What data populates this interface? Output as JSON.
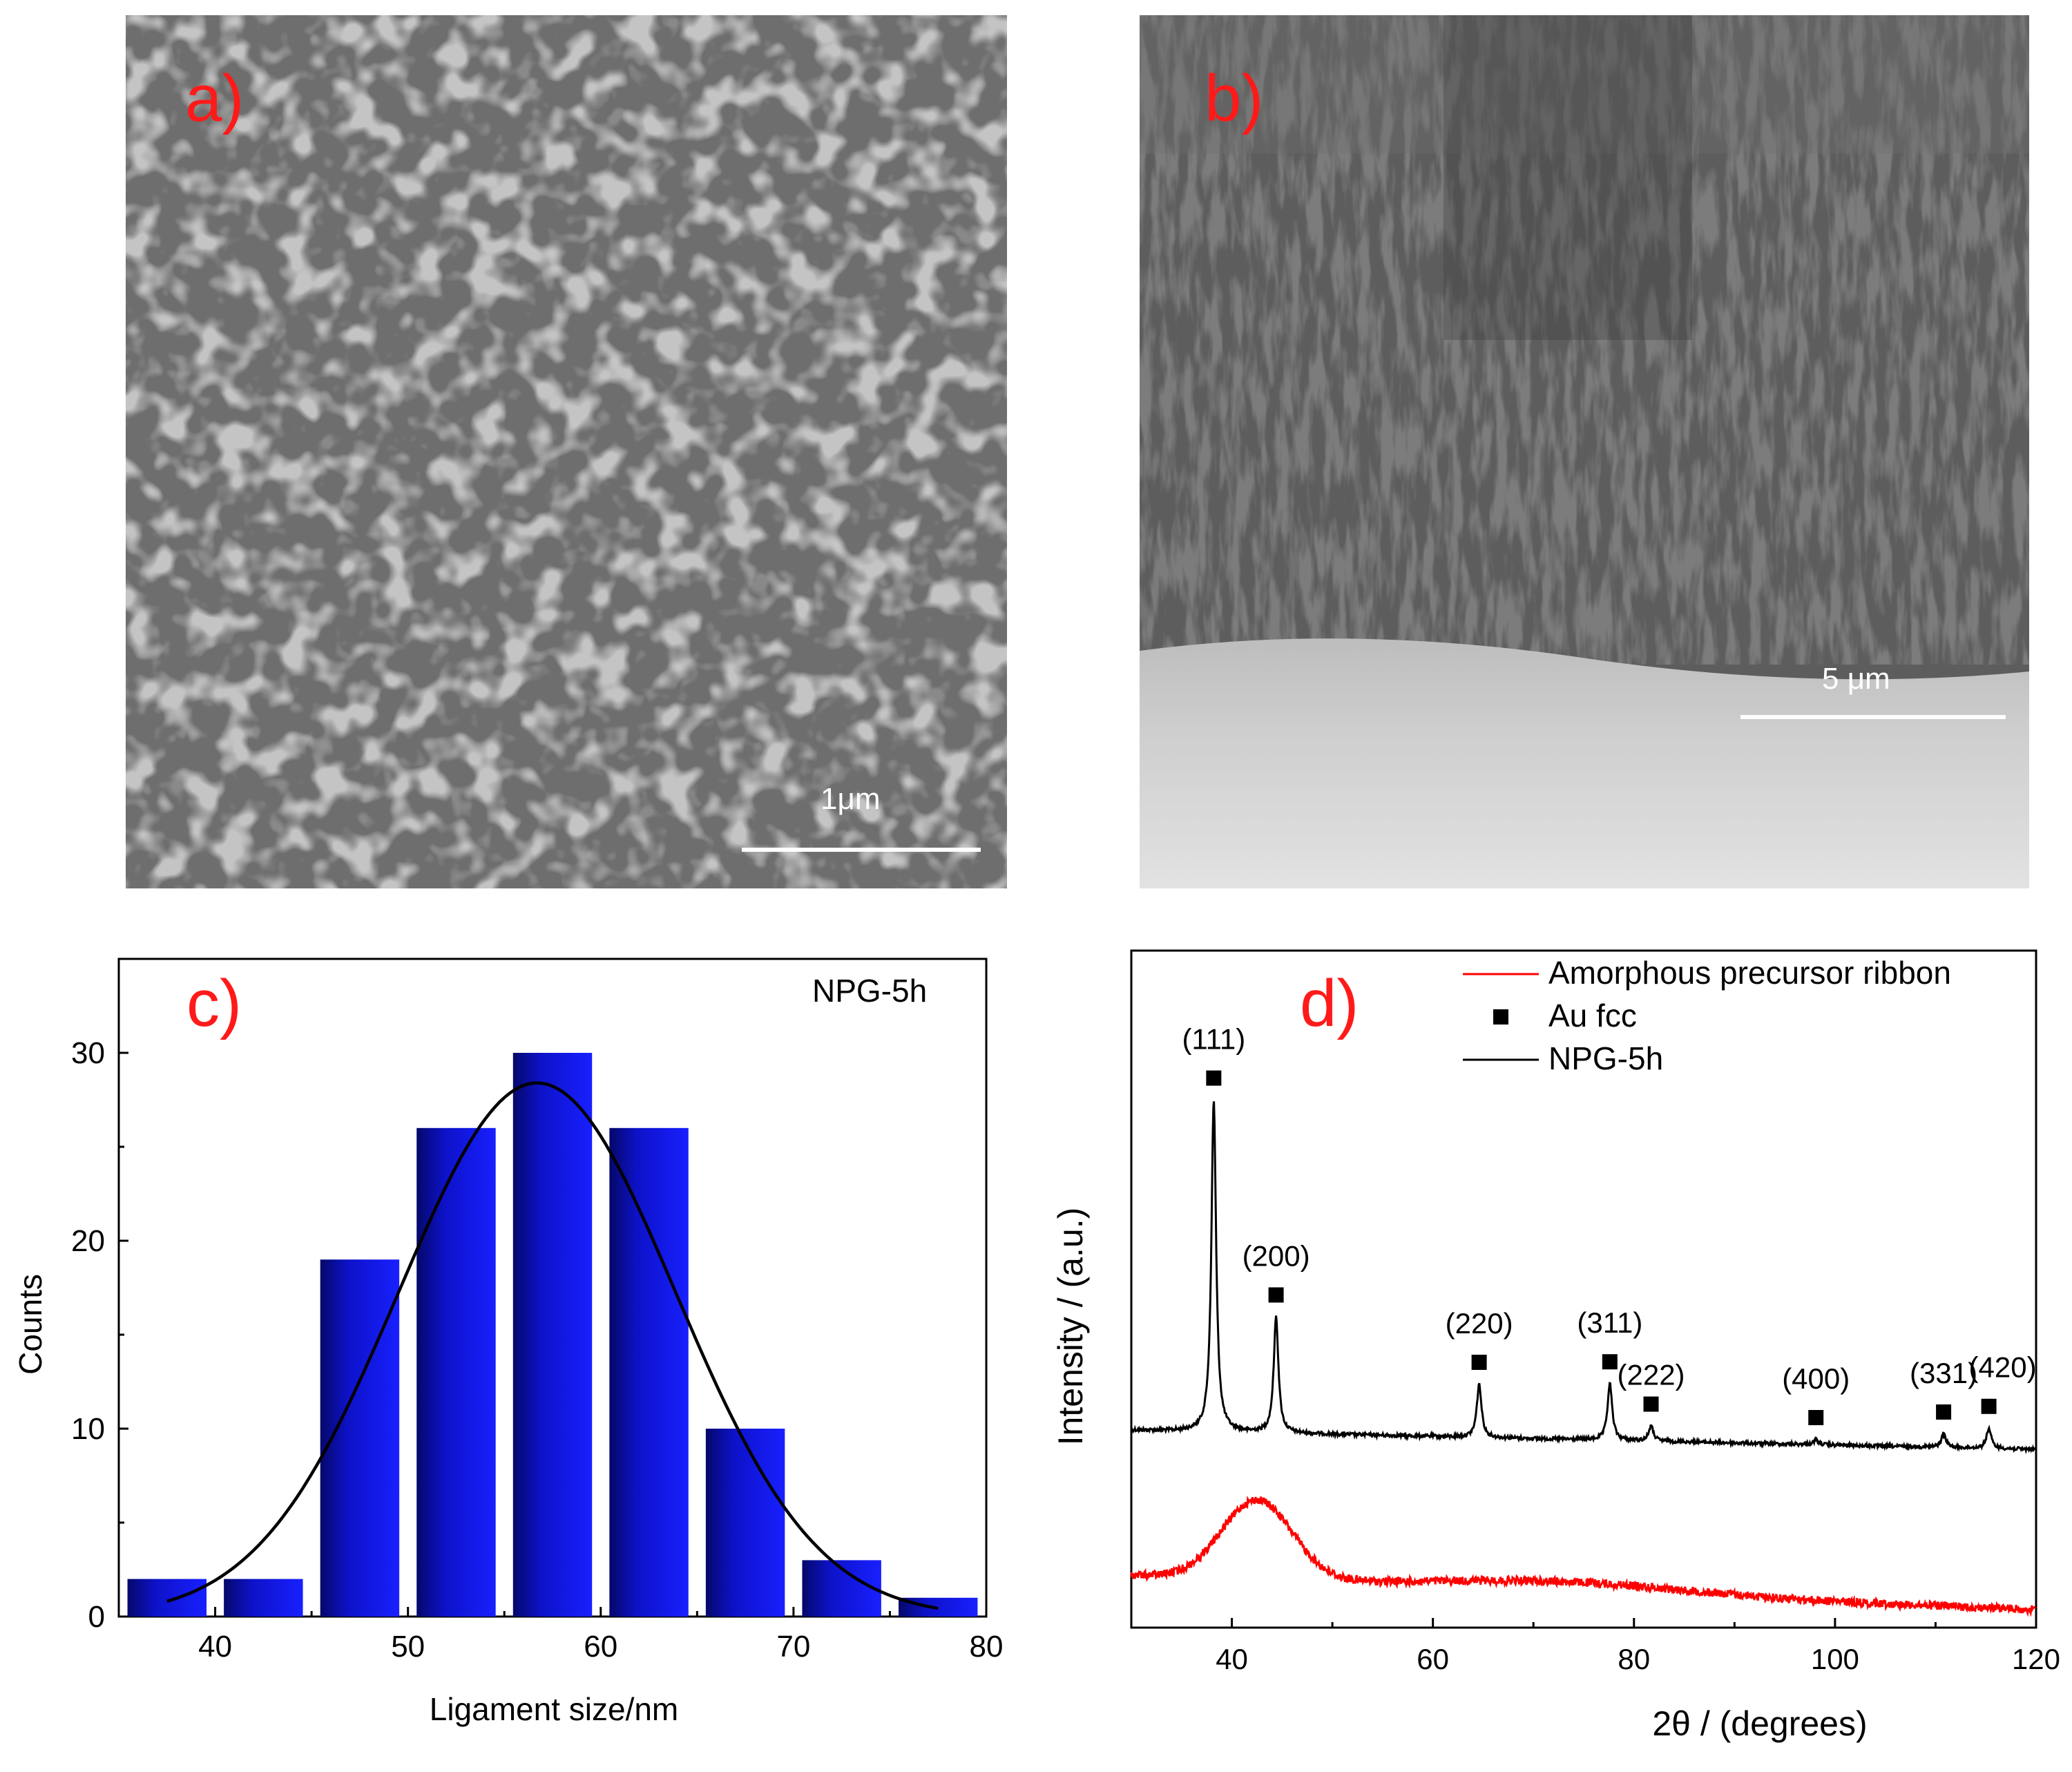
{
  "panels": {
    "a": {
      "label": "a)",
      "scale_bar": "1μm",
      "image": "SEM image, plan view of nanoporous gold ligament network"
    },
    "b": {
      "label": "b)",
      "scale_bar": "5 μm",
      "image": "SEM image, cross-section of nanoporous layer"
    },
    "c": {
      "label": "c)",
      "annotation": "NPG-5h"
    },
    "d": {
      "label": "d)"
    }
  },
  "colors": {
    "bars": "#0d12c8",
    "fit_line": "#000000",
    "red_pattern": "#ff0000",
    "black_pattern": "#000000",
    "panel_label": "#ff1a1a"
  },
  "chart_data": [
    {
      "type": "bar",
      "panel": "c",
      "annotation": "NPG-5h",
      "xlabel": "Ligament size/nm",
      "ylabel": "Counts",
      "xlim": [
        35,
        80
      ],
      "ylim": [
        0,
        35
      ],
      "x_ticks": [
        40,
        50,
        60,
        70,
        80
      ],
      "y_ticks": [
        0,
        10,
        20,
        30
      ],
      "bin_centers": [
        37.5,
        42.5,
        47.5,
        52.5,
        57.5,
        62.5,
        67.5,
        72.5,
        77.5
      ],
      "values": [
        2,
        2,
        19,
        26,
        30,
        26,
        10,
        3,
        1
      ],
      "fit": {
        "type": "gaussian",
        "peak": 28.4,
        "center": 56.7,
        "sigma": 7.2,
        "x_range": [
          37.5,
          77.5
        ]
      }
    },
    {
      "type": "line",
      "panel": "d",
      "xlabel": "2θ / (degrees)",
      "ylabel": "Intensity / (a.u.)",
      "xlim": [
        30,
        120
      ],
      "x_ticks": [
        40,
        60,
        80,
        100,
        120
      ],
      "legend_position": "top-right",
      "legend": [
        {
          "label": "Amorphous precursor ribbon",
          "kind": "line",
          "color": "#ff0000"
        },
        {
          "label": "Au fcc",
          "kind": "square-marker",
          "color": "#000000"
        },
        {
          "label": "NPG-5h",
          "kind": "line",
          "color": "#000000"
        }
      ],
      "series": [
        {
          "name": "NPG-5h",
          "color": "#000000",
          "peaks": [
            {
              "two_theta": 38.2,
              "hkl": "(111)",
              "intensity": 100
            },
            {
              "two_theta": 44.4,
              "hkl": "(200)",
              "intensity": 35
            },
            {
              "two_theta": 64.6,
              "hkl": "(220)",
              "intensity": 16
            },
            {
              "two_theta": 77.6,
              "hkl": "(311)",
              "intensity": 17
            },
            {
              "two_theta": 81.7,
              "hkl": "(222)",
              "intensity": 4.5
            },
            {
              "two_theta": 98.1,
              "hkl": "(400)",
              "intensity": 1.5
            },
            {
              "two_theta": 110.8,
              "hkl": "(331)",
              "intensity": 4
            },
            {
              "two_theta": 115.3,
              "hkl": "(420)",
              "intensity": 6
            }
          ]
        },
        {
          "name": "Amorphous precursor ribbon",
          "color": "#ff0000",
          "broad_peaks": [
            {
              "two_theta": 42.5,
              "intensity": 24,
              "width": 3.5
            },
            {
              "two_theta": 73,
              "intensity": 3,
              "width": 12
            }
          ]
        }
      ]
    }
  ]
}
